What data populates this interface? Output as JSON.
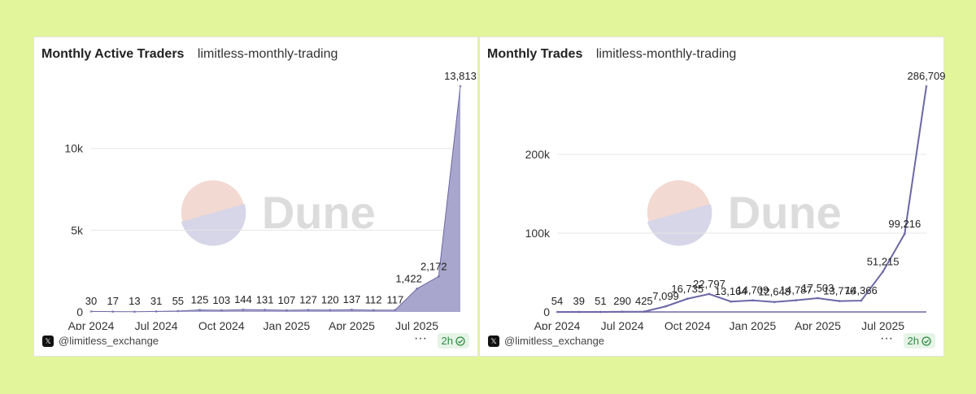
{
  "panels": [
    {
      "title": "Monthly Active Traders",
      "subtitle": "limitless-monthly-trading",
      "handle": "@limitless_exchange",
      "more": "···",
      "refresh": "2h",
      "watermark": "Dune"
    },
    {
      "title": "Monthly Trades",
      "subtitle": "limitless-monthly-trading",
      "handle": "@limitless_exchange",
      "more": "···",
      "refresh": "2h",
      "watermark": "Dune"
    }
  ],
  "colors": {
    "background": "#e2f59b",
    "area_fill": "#a8a6cc",
    "line": "#6b67a6",
    "grid": "#e6e6e6",
    "badge_text": "#2f8a3f",
    "badge_bg": "#e6f4e8",
    "watermark_top": "#f2d9d2",
    "watermark_bottom": "#d6d6e8",
    "watermark_text": "#dcdcdc"
  },
  "chart_data": [
    {
      "type": "area",
      "series": [
        {
          "values": [
            30,
            17,
            13,
            31,
            55,
            125,
            103,
            144,
            131,
            107,
            127,
            120,
            137,
            112,
            117,
            1422,
            2172,
            13813
          ],
          "labels": [
            "30",
            "17",
            "13",
            "31",
            "55",
            "125",
            "103",
            "144",
            "131",
            "107",
            "127",
            "120",
            "137",
            "112",
            "117",
            "1,422",
            "2,172",
            "13,813"
          ]
        }
      ],
      "x_tick_labels": [
        "Apr 2024",
        "Jul 2024",
        "Oct 2024",
        "Jan 2025",
        "Apr 2025",
        "Jul 2025"
      ],
      "x_tick_index": [
        0,
        3,
        6,
        9,
        12,
        15
      ],
      "y_ticks": [
        0,
        5000,
        10000
      ],
      "y_tick_labels": [
        "0",
        "5k",
        "10k"
      ],
      "ylim": [
        0,
        13813
      ],
      "grid": true
    },
    {
      "type": "line",
      "series": [
        {
          "values": [
            54,
            39,
            51,
            290,
            425,
            7099,
            16735,
            22797,
            13164,
            14709,
            12648,
            14787,
            17503,
            13776,
            14366,
            51215,
            99216,
            286709
          ],
          "labels": [
            "54",
            "39",
            "51",
            "290",
            "425",
            "7,099",
            "16,735",
            "22,797",
            "13,164",
            "14,709",
            "12,648",
            "14,787",
            "17,503",
            "13,776",
            "14,366",
            "51,215",
            "99,216",
            "286,709"
          ]
        }
      ],
      "x_tick_labels": [
        "Apr 2024",
        "Jul 2024",
        "Oct 2024",
        "Jan 2025",
        "Apr 2025",
        "Jul 2025"
      ],
      "x_tick_index": [
        0,
        3,
        6,
        9,
        12,
        15
      ],
      "y_ticks": [
        0,
        100000,
        200000
      ],
      "y_tick_labels": [
        "0",
        "100k",
        "200k"
      ],
      "ylim": [
        0,
        286709
      ],
      "grid": true
    }
  ]
}
